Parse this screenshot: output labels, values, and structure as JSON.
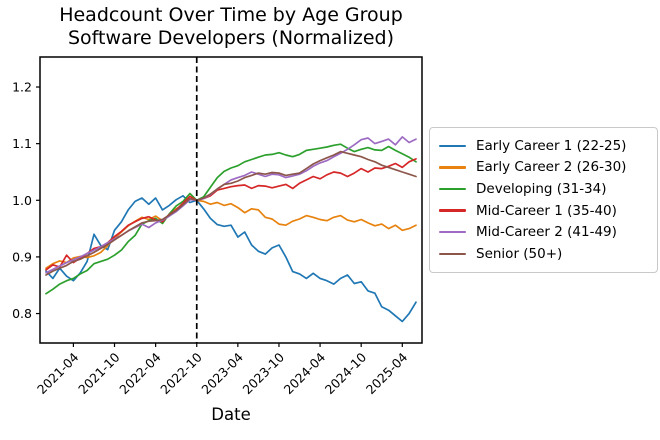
{
  "figure": {
    "title_line1": "Headcount Over Time by Age Group",
    "title_line2": "Software Developers (Normalized)"
  },
  "chart_data": {
    "type": "line",
    "title": "Headcount Over Time by Age Group",
    "subtitle": "Software Developers (Normalized)",
    "xlabel": "Date",
    "ylabel": "",
    "legend_position": "right",
    "grid": false,
    "ylim": [
      0.748,
      1.253
    ],
    "y_ticks": [
      "0.8",
      "0.9",
      "1.0",
      "1.1",
      "1.2"
    ],
    "x_tick_labels": [
      "2021-04",
      "2021-10",
      "2022-04",
      "2022-10",
      "2023-04",
      "2023-10",
      "2024-04",
      "2024-10",
      "2025-04"
    ],
    "event_line": {
      "x": "2022-10",
      "style": "dashed",
      "color": "#000000"
    },
    "x_monthly": [
      "2020-12",
      "2021-01",
      "2021-02",
      "2021-03",
      "2021-04",
      "2021-05",
      "2021-06",
      "2021-07",
      "2021-08",
      "2021-09",
      "2021-10",
      "2021-11",
      "2021-12",
      "2022-01",
      "2022-02",
      "2022-03",
      "2022-04",
      "2022-05",
      "2022-06",
      "2022-07",
      "2022-08",
      "2022-09",
      "2022-10",
      "2022-11",
      "2022-12",
      "2023-01",
      "2023-02",
      "2023-03",
      "2023-04",
      "2023-05",
      "2023-06",
      "2023-07",
      "2023-08",
      "2023-09",
      "2023-10",
      "2023-11",
      "2023-12",
      "2024-01",
      "2024-02",
      "2024-03",
      "2024-04",
      "2024-05",
      "2024-06",
      "2024-07",
      "2024-08",
      "2024-09",
      "2024-10",
      "2024-11",
      "2024-12",
      "2025-01",
      "2025-02",
      "2025-03",
      "2025-04",
      "2025-05",
      "2025-06"
    ],
    "series": [
      {
        "name": "Early Career 1 (22-25)",
        "color": "#1f77b4",
        "values": [
          0.875,
          0.862,
          0.88,
          0.866,
          0.858,
          0.872,
          0.892,
          0.94,
          0.92,
          0.913,
          0.947,
          0.962,
          0.983,
          0.998,
          1.004,
          0.993,
          1.004,
          0.983,
          0.991,
          1.001,
          1.008,
          0.996,
          1.0,
          0.985,
          0.968,
          0.957,
          0.954,
          0.956,
          0.935,
          0.944,
          0.921,
          0.91,
          0.905,
          0.916,
          0.921,
          0.9,
          0.874,
          0.87,
          0.862,
          0.871,
          0.862,
          0.858,
          0.852,
          0.862,
          0.868,
          0.853,
          0.856,
          0.84,
          0.836,
          0.812,
          0.806,
          0.796,
          0.786,
          0.8,
          0.82
        ]
      },
      {
        "name": "Early Career 2 (26-30)",
        "color": "#e8820e",
        "values": [
          0.88,
          0.888,
          0.893,
          0.89,
          0.898,
          0.901,
          0.899,
          0.902,
          0.908,
          0.92,
          0.933,
          0.944,
          0.955,
          0.963,
          0.97,
          0.966,
          0.972,
          0.964,
          0.975,
          0.985,
          0.992,
          1.003,
          1.0,
          0.998,
          0.993,
          0.996,
          0.991,
          0.994,
          0.987,
          0.978,
          0.985,
          0.983,
          0.97,
          0.967,
          0.958,
          0.956,
          0.963,
          0.967,
          0.973,
          0.97,
          0.966,
          0.964,
          0.97,
          0.973,
          0.965,
          0.962,
          0.966,
          0.96,
          0.955,
          0.958,
          0.95,
          0.956,
          0.947,
          0.95,
          0.956
        ]
      },
      {
        "name": "Developing (31-34)",
        "color": "#2ca02c",
        "values": [
          0.835,
          0.843,
          0.852,
          0.858,
          0.862,
          0.87,
          0.876,
          0.888,
          0.892,
          0.896,
          0.903,
          0.912,
          0.927,
          0.938,
          0.958,
          0.964,
          0.968,
          0.959,
          0.976,
          0.99,
          0.998,
          1.012,
          1.0,
          1.006,
          1.023,
          1.04,
          1.051,
          1.057,
          1.061,
          1.068,
          1.072,
          1.076,
          1.08,
          1.081,
          1.084,
          1.08,
          1.077,
          1.081,
          1.088,
          1.09,
          1.092,
          1.094,
          1.097,
          1.099,
          1.092,
          1.086,
          1.09,
          1.093,
          1.089,
          1.088,
          1.095,
          1.088,
          1.082,
          1.076,
          1.068
        ]
      },
      {
        "name": "Mid-Career 1 (35-40)",
        "color": "#d62728",
        "values": [
          0.877,
          0.886,
          0.882,
          0.903,
          0.89,
          0.898,
          0.906,
          0.915,
          0.918,
          0.925,
          0.936,
          0.945,
          0.956,
          0.962,
          0.968,
          0.971,
          0.965,
          0.962,
          0.975,
          0.983,
          0.995,
          1.007,
          1.0,
          1.003,
          1.008,
          1.018,
          1.021,
          1.024,
          1.026,
          1.027,
          1.021,
          1.026,
          1.025,
          1.022,
          1.025,
          1.028,
          1.021,
          1.03,
          1.036,
          1.042,
          1.038,
          1.045,
          1.05,
          1.048,
          1.042,
          1.048,
          1.056,
          1.05,
          1.057,
          1.056,
          1.06,
          1.065,
          1.058,
          1.068,
          1.073
        ]
      },
      {
        "name": "Mid-Career 2 (41-49)",
        "color": "#9d6bc3",
        "values": [
          0.872,
          0.878,
          0.884,
          0.89,
          0.895,
          0.9,
          0.906,
          0.912,
          0.918,
          0.925,
          0.932,
          0.938,
          0.946,
          0.952,
          0.958,
          0.952,
          0.96,
          0.965,
          0.972,
          0.98,
          0.99,
          1.001,
          1.0,
          1.003,
          1.01,
          1.02,
          1.028,
          1.036,
          1.04,
          1.044,
          1.05,
          1.046,
          1.042,
          1.046,
          1.045,
          1.04,
          1.043,
          1.046,
          1.052,
          1.06,
          1.066,
          1.07,
          1.077,
          1.083,
          1.09,
          1.098,
          1.107,
          1.11,
          1.1,
          1.104,
          1.108,
          1.098,
          1.112,
          1.102,
          1.108
        ]
      },
      {
        "name": "Senior (50+)",
        "color": "#8c564b",
        "values": [
          0.868,
          0.875,
          0.88,
          0.885,
          0.892,
          0.896,
          0.902,
          0.908,
          0.915,
          0.922,
          0.93,
          0.938,
          0.946,
          0.953,
          0.96,
          0.963,
          0.964,
          0.966,
          0.974,
          0.982,
          0.992,
          1.003,
          1.0,
          1.004,
          1.011,
          1.02,
          1.028,
          1.03,
          1.034,
          1.04,
          1.044,
          1.048,
          1.046,
          1.049,
          1.048,
          1.044,
          1.046,
          1.048,
          1.056,
          1.064,
          1.07,
          1.075,
          1.08,
          1.086,
          1.083,
          1.08,
          1.077,
          1.072,
          1.068,
          1.062,
          1.058,
          1.054,
          1.05,
          1.046,
          1.042
        ]
      }
    ]
  }
}
